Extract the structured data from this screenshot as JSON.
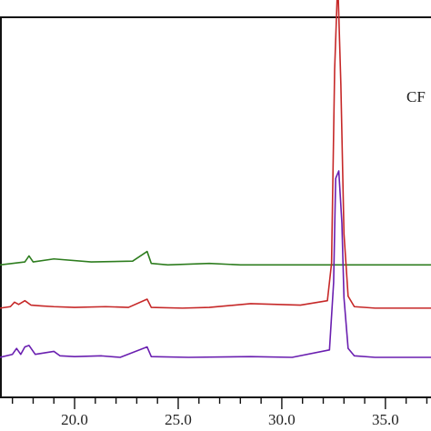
{
  "chart_data": {
    "type": "line",
    "title": "",
    "xlabel": "",
    "ylabel": "",
    "xlim": [
      16.4,
      37.2
    ],
    "x_ticks": [
      "20.0",
      "25.0",
      "30.0",
      "35.0"
    ],
    "y_ticks": [],
    "grid": false,
    "legend": "none",
    "annotations": [
      {
        "text": "CF"
      }
    ],
    "series": [
      {
        "color": "#2e7d1f",
        "offset": 0.62,
        "x": [
          16.4,
          17.6,
          17.8,
          18.0,
          19.0,
          20.8,
          22.8,
          23.5,
          23.7,
          24.5,
          26.5,
          28.0,
          30.5,
          32.4,
          32.6,
          32.75,
          32.9,
          33.1,
          34.5,
          37.2
        ],
        "values": [
          0.0,
          0.02,
          0.06,
          0.02,
          0.04,
          0.02,
          0.025,
          0.09,
          0.01,
          0.0,
          0.01,
          0.0,
          0.0,
          0.0,
          0.0,
          0.0,
          0.0,
          0.0,
          0.0,
          0.0
        ]
      },
      {
        "color": "#c62828",
        "offset": 0.33,
        "x": [
          16.4,
          16.9,
          17.1,
          17.3,
          17.6,
          17.9,
          18.4,
          19.0,
          20.0,
          21.5,
          22.6,
          23.5,
          23.7,
          25.2,
          26.5,
          28.5,
          30.9,
          32.2,
          32.4,
          32.55,
          32.7,
          32.85,
          33.0,
          33.2,
          33.5,
          34.5,
          37.2
        ],
        "values": [
          0.0,
          0.01,
          0.04,
          0.025,
          0.05,
          0.02,
          0.015,
          0.01,
          0.005,
          0.01,
          0.005,
          0.06,
          0.005,
          0.0,
          0.005,
          0.03,
          0.02,
          0.05,
          0.3,
          1.6,
          2.2,
          1.5,
          0.5,
          0.08,
          0.01,
          0.0,
          0.0
        ]
      },
      {
        "color": "#6a1fb0",
        "offset": 0.0,
        "x": [
          16.4,
          17.0,
          17.2,
          17.4,
          17.6,
          17.8,
          18.1,
          19.0,
          19.3,
          20.0,
          21.3,
          22.2,
          23.5,
          23.7,
          25.5,
          28.5,
          30.5,
          32.3,
          32.5,
          32.6,
          32.75,
          32.9,
          33.0,
          33.2,
          33.5,
          34.5,
          37.2
        ],
        "values": [
          0.0,
          0.02,
          0.06,
          0.02,
          0.07,
          0.08,
          0.02,
          0.04,
          0.01,
          0.005,
          0.01,
          0.0,
          0.07,
          0.005,
          0.0,
          0.005,
          0.0,
          0.05,
          0.5,
          1.2,
          1.25,
          0.9,
          0.4,
          0.06,
          0.01,
          0.0,
          0.0
        ]
      }
    ]
  }
}
